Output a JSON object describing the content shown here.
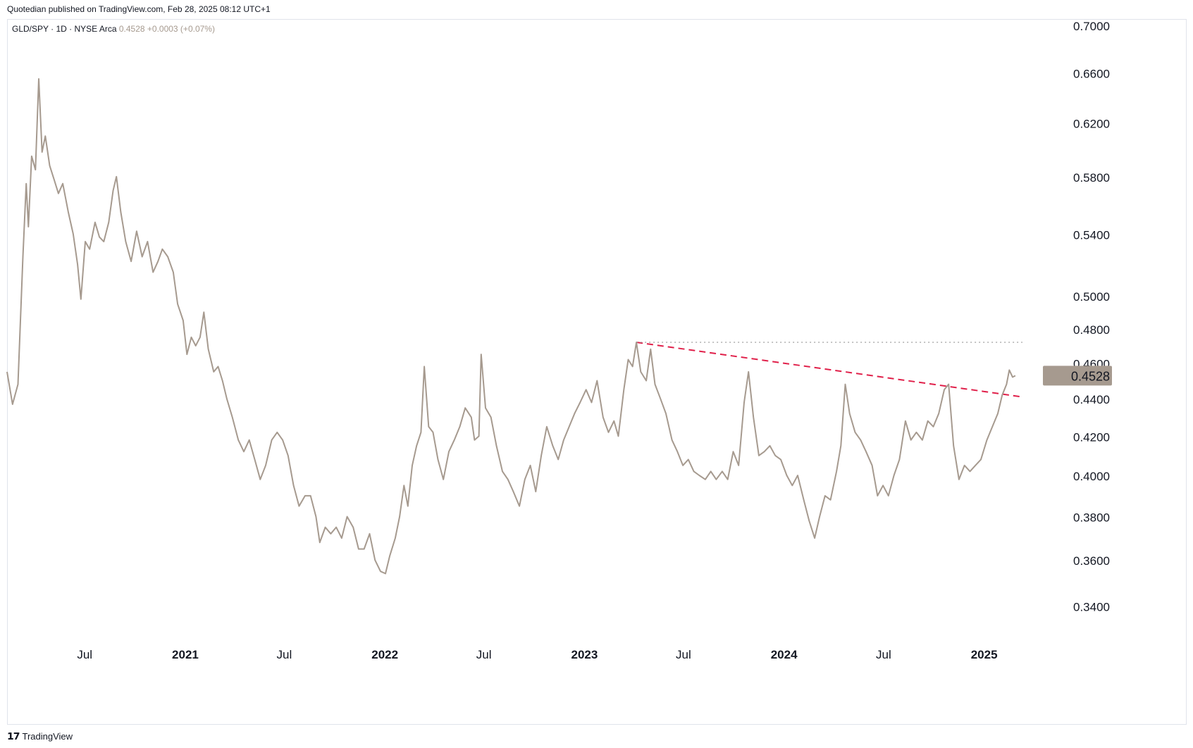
{
  "header": {
    "published": "Quotedian published on TradingView.com, Feb 28, 2025 08:12 UTC+1"
  },
  "legend": {
    "symbol": "GLD/SPY · 1D · NYSE Arca",
    "last": "0.4528",
    "change": "+0.0003 (+0.07%)"
  },
  "footer": {
    "logo_glyph": "𝟭𝟳",
    "brand": "TradingView"
  },
  "colors": {
    "series": "#a69a8f",
    "trendline": "#e0204a",
    "resistance": "#9e9e9e",
    "price_badge": "#a69a8f"
  },
  "chart_data": {
    "type": "line",
    "title": "",
    "yscale": "log",
    "ylim": [
      0.327,
      0.705
    ],
    "y_ticks": [
      "0.7000",
      "0.6600",
      "0.6200",
      "0.5800",
      "0.5400",
      "0.5000",
      "0.4800",
      "0.4600",
      "0.4400",
      "0.4200",
      "0.4000",
      "0.3800",
      "0.3600",
      "0.3400"
    ],
    "x_ticks": [
      {
        "label": "Jul",
        "date": "2020-07-01"
      },
      {
        "label": "2021",
        "date": "2021-01-01"
      },
      {
        "label": "Jul",
        "date": "2021-07-01"
      },
      {
        "label": "2022",
        "date": "2022-01-01"
      },
      {
        "label": "Jul",
        "date": "2022-07-01"
      },
      {
        "label": "2023",
        "date": "2023-01-01"
      },
      {
        "label": "Jul",
        "date": "2023-07-01"
      },
      {
        "label": "2024",
        "date": "2024-01-01"
      },
      {
        "label": "Jul",
        "date": "2024-07-01"
      },
      {
        "label": "2025",
        "date": "2025-01-01"
      }
    ],
    "xlim": [
      "2020-02-10",
      "2025-04-12"
    ],
    "last_value": "0.4528",
    "series": [
      {
        "points": [
          [
            "2020-02-10",
            0.455
          ],
          [
            "2020-02-20",
            0.437
          ],
          [
            "2020-03-01",
            0.448
          ],
          [
            "2020-03-10",
            0.525
          ],
          [
            "2020-03-16",
            0.575
          ],
          [
            "2020-03-20",
            0.545
          ],
          [
            "2020-03-26",
            0.595
          ],
          [
            "2020-04-02",
            0.585
          ],
          [
            "2020-04-08",
            0.655
          ],
          [
            "2020-04-14",
            0.598
          ],
          [
            "2020-04-20",
            0.61
          ],
          [
            "2020-04-28",
            0.588
          ],
          [
            "2020-05-06",
            0.578
          ],
          [
            "2020-05-14",
            0.568
          ],
          [
            "2020-05-22",
            0.575
          ],
          [
            "2020-06-01",
            0.555
          ],
          [
            "2020-06-10",
            0.54
          ],
          [
            "2020-06-18",
            0.52
          ],
          [
            "2020-06-24",
            0.498
          ],
          [
            "2020-07-02",
            0.535
          ],
          [
            "2020-07-10",
            0.53
          ],
          [
            "2020-07-20",
            0.548
          ],
          [
            "2020-07-28",
            0.538
          ],
          [
            "2020-08-05",
            0.535
          ],
          [
            "2020-08-14",
            0.548
          ],
          [
            "2020-08-22",
            0.57
          ],
          [
            "2020-08-28",
            0.58
          ],
          [
            "2020-09-05",
            0.555
          ],
          [
            "2020-09-14",
            0.535
          ],
          [
            "2020-09-24",
            0.522
          ],
          [
            "2020-10-04",
            0.542
          ],
          [
            "2020-10-14",
            0.525
          ],
          [
            "2020-10-24",
            0.535
          ],
          [
            "2020-11-03",
            0.515
          ],
          [
            "2020-11-12",
            0.522
          ],
          [
            "2020-11-20",
            0.53
          ],
          [
            "2020-11-30",
            0.525
          ],
          [
            "2020-12-10",
            0.515
          ],
          [
            "2020-12-18",
            0.495
          ],
          [
            "2020-12-28",
            0.485
          ],
          [
            "2021-01-04",
            0.465
          ],
          [
            "2021-01-12",
            0.475
          ],
          [
            "2021-01-20",
            0.47
          ],
          [
            "2021-01-28",
            0.475
          ],
          [
            "2021-02-04",
            0.49
          ],
          [
            "2021-02-12",
            0.468
          ],
          [
            "2021-02-22",
            0.455
          ],
          [
            "2021-03-02",
            0.458
          ],
          [
            "2021-03-10",
            0.45
          ],
          [
            "2021-03-18",
            0.44
          ],
          [
            "2021-03-28",
            0.43
          ],
          [
            "2021-04-08",
            0.418
          ],
          [
            "2021-04-18",
            0.412
          ],
          [
            "2021-04-28",
            0.418
          ],
          [
            "2021-05-08",
            0.408
          ],
          [
            "2021-05-18",
            0.398
          ],
          [
            "2021-05-28",
            0.405
          ],
          [
            "2021-06-08",
            0.418
          ],
          [
            "2021-06-18",
            0.422
          ],
          [
            "2021-06-28",
            0.418
          ],
          [
            "2021-07-08",
            0.41
          ],
          [
            "2021-07-18",
            0.395
          ],
          [
            "2021-07-28",
            0.385
          ],
          [
            "2021-08-08",
            0.39
          ],
          [
            "2021-08-18",
            0.39
          ],
          [
            "2021-08-28",
            0.38
          ],
          [
            "2021-09-04",
            0.368
          ],
          [
            "2021-09-14",
            0.375
          ],
          [
            "2021-09-24",
            0.372
          ],
          [
            "2021-10-04",
            0.375
          ],
          [
            "2021-10-14",
            0.37
          ],
          [
            "2021-10-24",
            0.38
          ],
          [
            "2021-11-04",
            0.375
          ],
          [
            "2021-11-14",
            0.365
          ],
          [
            "2021-11-24",
            0.365
          ],
          [
            "2021-12-04",
            0.372
          ],
          [
            "2021-12-14",
            0.36
          ],
          [
            "2021-12-24",
            0.355
          ],
          [
            "2022-01-02",
            0.354
          ],
          [
            "2022-01-10",
            0.362
          ],
          [
            "2022-01-20",
            0.37
          ],
          [
            "2022-01-28",
            0.38
          ],
          [
            "2022-02-05",
            0.395
          ],
          [
            "2022-02-12",
            0.385
          ],
          [
            "2022-02-20",
            0.405
          ],
          [
            "2022-02-28",
            0.415
          ],
          [
            "2022-03-08",
            0.422
          ],
          [
            "2022-03-14",
            0.458
          ],
          [
            "2022-03-22",
            0.425
          ],
          [
            "2022-03-30",
            0.422
          ],
          [
            "2022-04-08",
            0.408
          ],
          [
            "2022-04-18",
            0.398
          ],
          [
            "2022-04-28",
            0.412
          ],
          [
            "2022-05-08",
            0.418
          ],
          [
            "2022-05-18",
            0.425
          ],
          [
            "2022-05-28",
            0.435
          ],
          [
            "2022-06-08",
            0.43
          ],
          [
            "2022-06-14",
            0.418
          ],
          [
            "2022-06-22",
            0.42
          ],
          [
            "2022-06-26",
            0.465
          ],
          [
            "2022-07-04",
            0.435
          ],
          [
            "2022-07-14",
            0.43
          ],
          [
            "2022-07-24",
            0.415
          ],
          [
            "2022-08-04",
            0.402
          ],
          [
            "2022-08-14",
            0.398
          ],
          [
            "2022-08-24",
            0.392
          ],
          [
            "2022-09-04",
            0.385
          ],
          [
            "2022-09-14",
            0.398
          ],
          [
            "2022-09-24",
            0.405
          ],
          [
            "2022-10-04",
            0.392
          ],
          [
            "2022-10-14",
            0.41
          ],
          [
            "2022-10-24",
            0.425
          ],
          [
            "2022-11-04",
            0.415
          ],
          [
            "2022-11-14",
            0.408
          ],
          [
            "2022-11-24",
            0.418
          ],
          [
            "2022-12-04",
            0.425
          ],
          [
            "2022-12-14",
            0.432
          ],
          [
            "2022-12-24",
            0.438
          ],
          [
            "2023-01-04",
            0.445
          ],
          [
            "2023-01-14",
            0.438
          ],
          [
            "2023-01-24",
            0.45
          ],
          [
            "2023-02-04",
            0.43
          ],
          [
            "2023-02-14",
            0.422
          ],
          [
            "2023-02-24",
            0.428
          ],
          [
            "2023-03-04",
            0.42
          ],
          [
            "2023-03-14",
            0.445
          ],
          [
            "2023-03-22",
            0.462
          ],
          [
            "2023-03-30",
            0.458
          ],
          [
            "2023-04-06",
            0.472
          ],
          [
            "2023-04-14",
            0.455
          ],
          [
            "2023-04-24",
            0.45
          ],
          [
            "2023-05-02",
            0.468
          ],
          [
            "2023-05-10",
            0.448
          ],
          [
            "2023-05-20",
            0.44
          ],
          [
            "2023-05-30",
            0.432
          ],
          [
            "2023-06-10",
            0.418
          ],
          [
            "2023-06-20",
            0.412
          ],
          [
            "2023-06-30",
            0.405
          ],
          [
            "2023-07-10",
            0.408
          ],
          [
            "2023-07-20",
            0.402
          ],
          [
            "2023-07-30",
            0.4
          ],
          [
            "2023-08-10",
            0.398
          ],
          [
            "2023-08-20",
            0.402
          ],
          [
            "2023-08-30",
            0.398
          ],
          [
            "2023-09-10",
            0.402
          ],
          [
            "2023-09-20",
            0.398
          ],
          [
            "2023-09-30",
            0.412
          ],
          [
            "2023-10-10",
            0.405
          ],
          [
            "2023-10-20",
            0.438
          ],
          [
            "2023-10-28",
            0.455
          ],
          [
            "2023-11-06",
            0.43
          ],
          [
            "2023-11-16",
            0.41
          ],
          [
            "2023-11-26",
            0.412
          ],
          [
            "2023-12-06",
            0.415
          ],
          [
            "2023-12-16",
            0.41
          ],
          [
            "2023-12-26",
            0.408
          ],
          [
            "2024-01-06",
            0.4
          ],
          [
            "2024-01-16",
            0.395
          ],
          [
            "2024-01-26",
            0.4
          ],
          [
            "2024-02-06",
            0.388
          ],
          [
            "2024-02-16",
            0.378
          ],
          [
            "2024-02-26",
            0.37
          ],
          [
            "2024-03-06",
            0.38
          ],
          [
            "2024-03-16",
            0.39
          ],
          [
            "2024-03-26",
            0.388
          ],
          [
            "2024-04-06",
            0.402
          ],
          [
            "2024-04-14",
            0.415
          ],
          [
            "2024-04-22",
            0.448
          ],
          [
            "2024-04-30",
            0.432
          ],
          [
            "2024-05-10",
            0.422
          ],
          [
            "2024-05-20",
            0.418
          ],
          [
            "2024-05-30",
            0.412
          ],
          [
            "2024-06-10",
            0.405
          ],
          [
            "2024-06-20",
            0.39
          ],
          [
            "2024-06-30",
            0.395
          ],
          [
            "2024-07-10",
            0.39
          ],
          [
            "2024-07-20",
            0.4
          ],
          [
            "2024-07-30",
            0.408
          ],
          [
            "2024-08-10",
            0.428
          ],
          [
            "2024-08-20",
            0.418
          ],
          [
            "2024-08-30",
            0.422
          ],
          [
            "2024-09-10",
            0.418
          ],
          [
            "2024-09-20",
            0.428
          ],
          [
            "2024-09-30",
            0.425
          ],
          [
            "2024-10-10",
            0.432
          ],
          [
            "2024-10-20",
            0.445
          ],
          [
            "2024-10-28",
            0.448
          ],
          [
            "2024-11-06",
            0.415
          ],
          [
            "2024-11-16",
            0.398
          ],
          [
            "2024-11-26",
            0.405
          ],
          [
            "2024-12-06",
            0.402
          ],
          [
            "2024-12-16",
            0.405
          ],
          [
            "2024-12-26",
            0.408
          ],
          [
            "2025-01-06",
            0.418
          ],
          [
            "2025-01-16",
            0.425
          ],
          [
            "2025-01-26",
            0.432
          ],
          [
            "2025-02-03",
            0.442
          ],
          [
            "2025-02-11",
            0.448
          ],
          [
            "2025-02-16",
            0.456
          ],
          [
            "2025-02-22",
            0.452
          ],
          [
            "2025-02-27",
            0.4528
          ]
        ]
      }
    ],
    "annotations": [
      {
        "type": "dashed-trendline",
        "from": [
          "2023-04-06",
          0.472
        ],
        "to": [
          "2025-03-12",
          0.441
        ]
      },
      {
        "type": "dotted-horizontal",
        "from": [
          "2023-04-06",
          0.472
        ],
        "to": [
          "2025-03-12",
          0.472
        ]
      }
    ]
  }
}
